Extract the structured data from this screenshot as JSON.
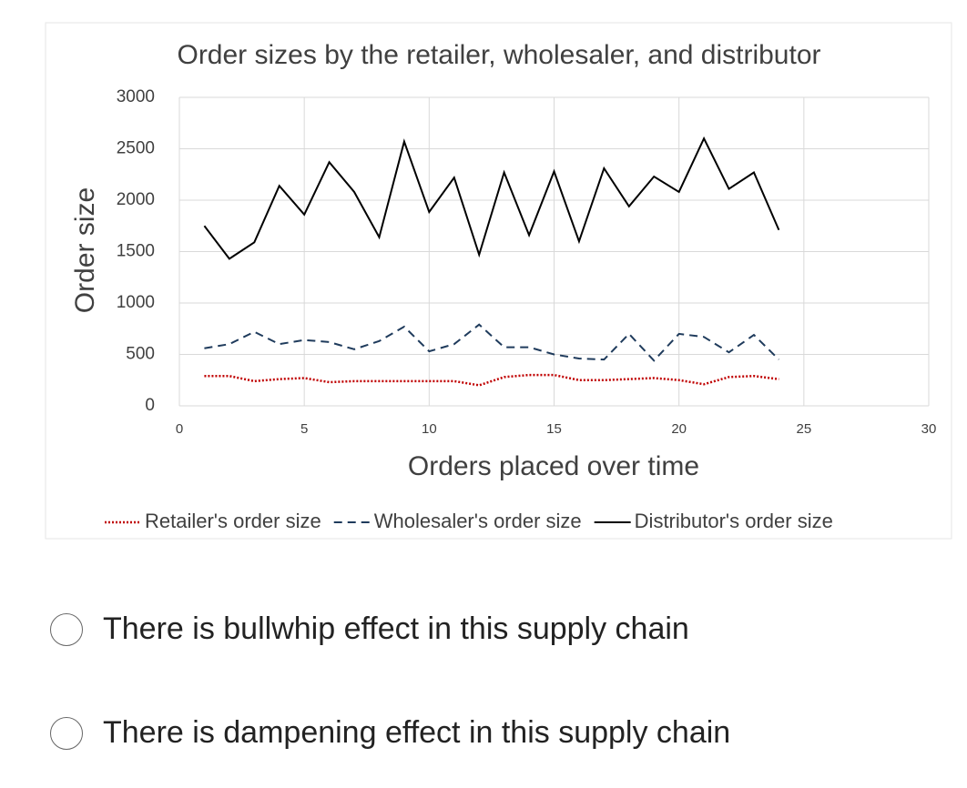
{
  "chart_data": {
    "type": "line",
    "title": "Order sizes by the retailer, wholesaler, and distributor",
    "x_label": "Orders placed over time",
    "y_label": "Order size",
    "x": [
      1,
      2,
      3,
      4,
      5,
      6,
      7,
      8,
      9,
      10,
      11,
      12,
      13,
      14,
      15,
      16,
      17,
      18,
      19,
      20,
      21,
      22,
      23,
      24
    ],
    "series": [
      {
        "name": "Retailer's order size",
        "color": "#c00000",
        "linestyle": "dotted",
        "values": [
          290,
          290,
          240,
          260,
          270,
          230,
          240,
          240,
          240,
          240,
          240,
          200,
          280,
          300,
          300,
          250,
          250,
          260,
          270,
          250,
          210,
          280,
          290,
          260
        ]
      },
      {
        "name": "Wholesaler's order size",
        "color": "#1f3b5c",
        "linestyle": "dashed",
        "values": [
          560,
          600,
          720,
          600,
          640,
          620,
          550,
          630,
          770,
          530,
          600,
          790,
          570,
          570,
          500,
          460,
          450,
          700,
          440,
          700,
          670,
          520,
          690,
          450
        ]
      },
      {
        "name": "Distributor's order size",
        "color": "#000000",
        "linestyle": "solid",
        "values": [
          1750,
          1430,
          1590,
          2140,
          1860,
          2370,
          2080,
          1640,
          2570,
          1885,
          2220,
          1470,
          2270,
          1660,
          2280,
          1600,
          2310,
          1940,
          2230,
          2080,
          2600,
          2110,
          2270,
          1710
        ]
      }
    ],
    "xlim": [
      0,
      30
    ],
    "xticks": [
      0,
      5,
      10,
      15,
      20,
      25,
      30
    ],
    "ylim": [
      0,
      3000
    ],
    "yticks": [
      0,
      500,
      1000,
      1500,
      2000,
      2500,
      3000
    ],
    "grid": true,
    "legend": "bottom"
  },
  "options": [
    "There is bullwhip effect in this supply chain",
    "There is dampening effect in this supply chain"
  ]
}
